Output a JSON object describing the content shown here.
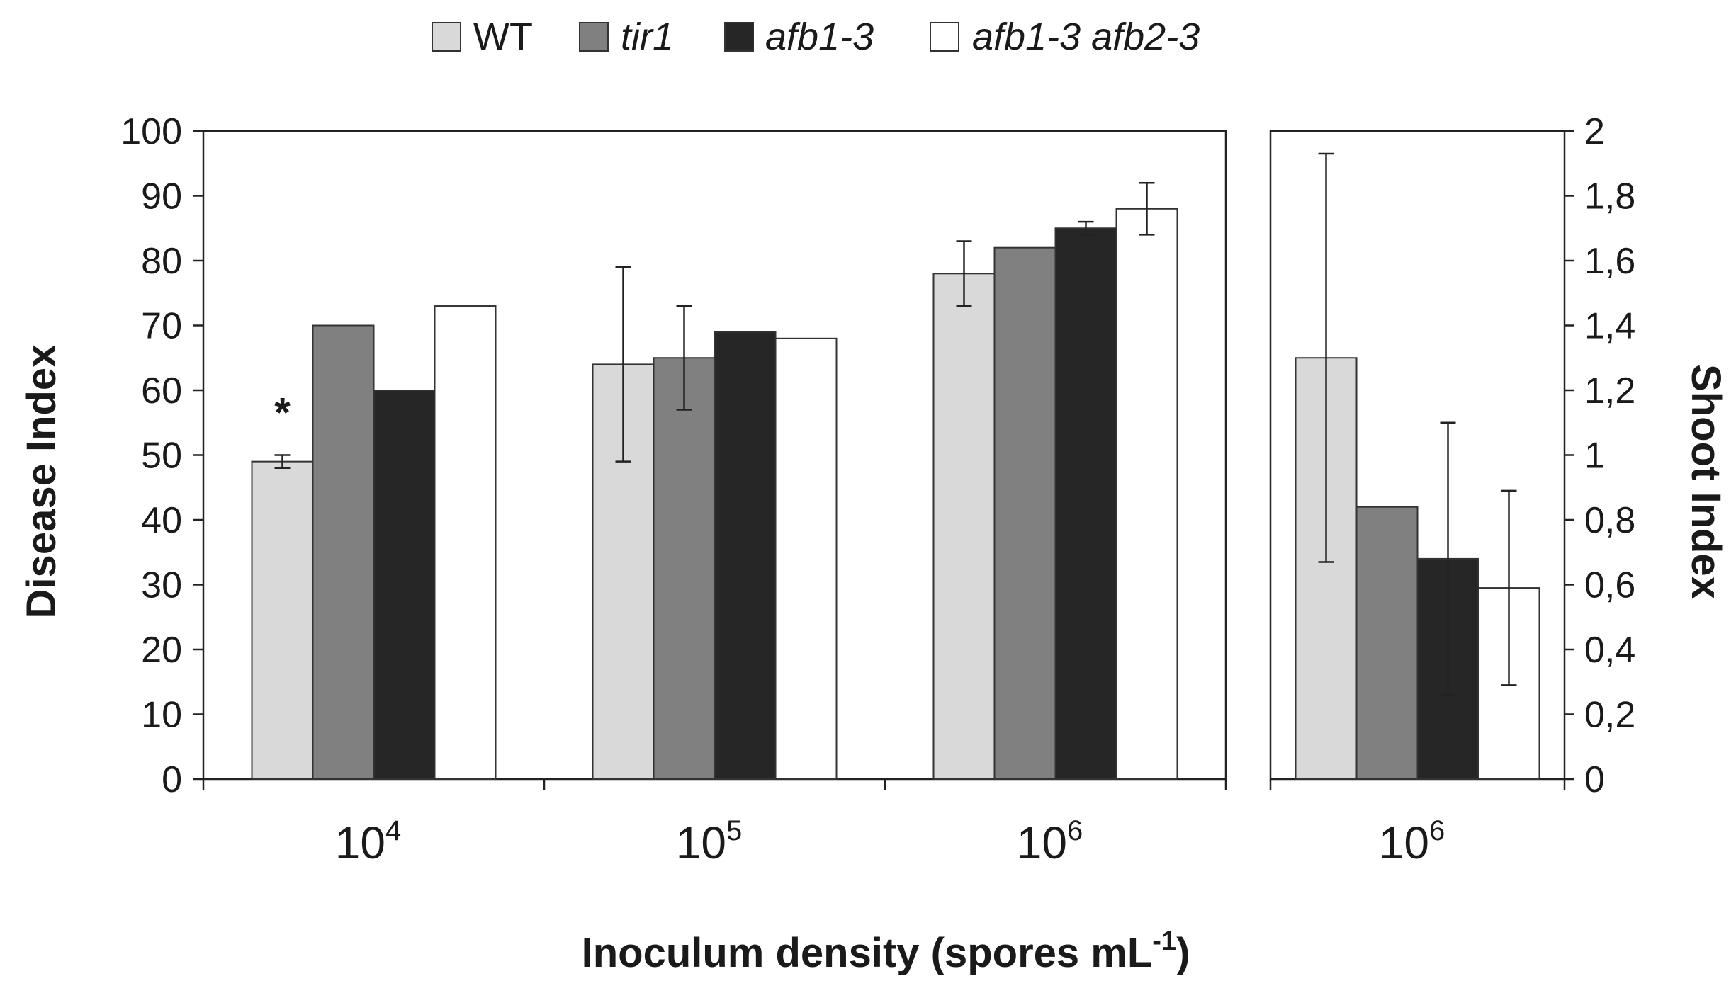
{
  "chart_data": [
    {
      "type": "bar",
      "panel": "left",
      "categories": [
        "10^4",
        "10^5",
        "10^6"
      ],
      "category_labels": [
        {
          "base": "10",
          "exp": "4"
        },
        {
          "base": "10",
          "exp": "5"
        },
        {
          "base": "10",
          "exp": "6"
        }
      ],
      "series": [
        {
          "name": "WT",
          "values": [
            49,
            64,
            78
          ],
          "errors": [
            1,
            15,
            5
          ]
        },
        {
          "name": "tir1",
          "values": [
            70,
            65,
            82
          ],
          "errors": [
            0,
            8,
            0
          ]
        },
        {
          "name": "afb1-3",
          "values": [
            60,
            69,
            85
          ],
          "errors": [
            0,
            0,
            1
          ]
        },
        {
          "name": "afb1-3 afb2-3",
          "values": [
            73,
            68,
            88
          ],
          "errors": [
            0,
            0,
            4
          ]
        }
      ],
      "significance": [
        {
          "category": "10^4",
          "series": "WT",
          "label": "*"
        }
      ],
      "ylabel": "Disease Index",
      "ylim": [
        0,
        100
      ],
      "yticks": [
        "0",
        "10",
        "20",
        "30",
        "40",
        "50",
        "60",
        "70",
        "80",
        "90",
        "100"
      ]
    },
    {
      "type": "bar",
      "panel": "right",
      "categories": [
        "10^6"
      ],
      "category_labels": [
        {
          "base": "10",
          "exp": "6"
        }
      ],
      "series": [
        {
          "name": "WT",
          "values": [
            1.3
          ],
          "errors": [
            0.63
          ]
        },
        {
          "name": "tir1",
          "values": [
            0.84
          ],
          "errors": [
            0
          ]
        },
        {
          "name": "afb1-3",
          "values": [
            0.68
          ],
          "errors": [
            0.42
          ]
        },
        {
          "name": "afb1-3 afb2-3",
          "values": [
            0.59
          ],
          "errors": [
            0.3
          ]
        }
      ],
      "ylabel": "Shoot Index",
      "ylim": [
        0,
        2
      ],
      "yticks": [
        "0",
        "0,2",
        "0,4",
        "0,6",
        "0,8",
        "1",
        "1,2",
        "1,4",
        "1,6",
        "1,8",
        "2"
      ]
    }
  ],
  "legend": [
    {
      "name": "WT",
      "italic": false,
      "color": "#d9d9d9"
    },
    {
      "name": "tir1",
      "italic": true,
      "color": "#808080"
    },
    {
      "name": "afb1-3",
      "italic": true,
      "color": "#262626"
    },
    {
      "name": "afb1-3 afb2-3",
      "italic": true,
      "color": "#ffffff"
    }
  ],
  "xlabel": {
    "text": "Inoculum density (spores mL",
    "sup": "-1",
    "close": ")"
  }
}
